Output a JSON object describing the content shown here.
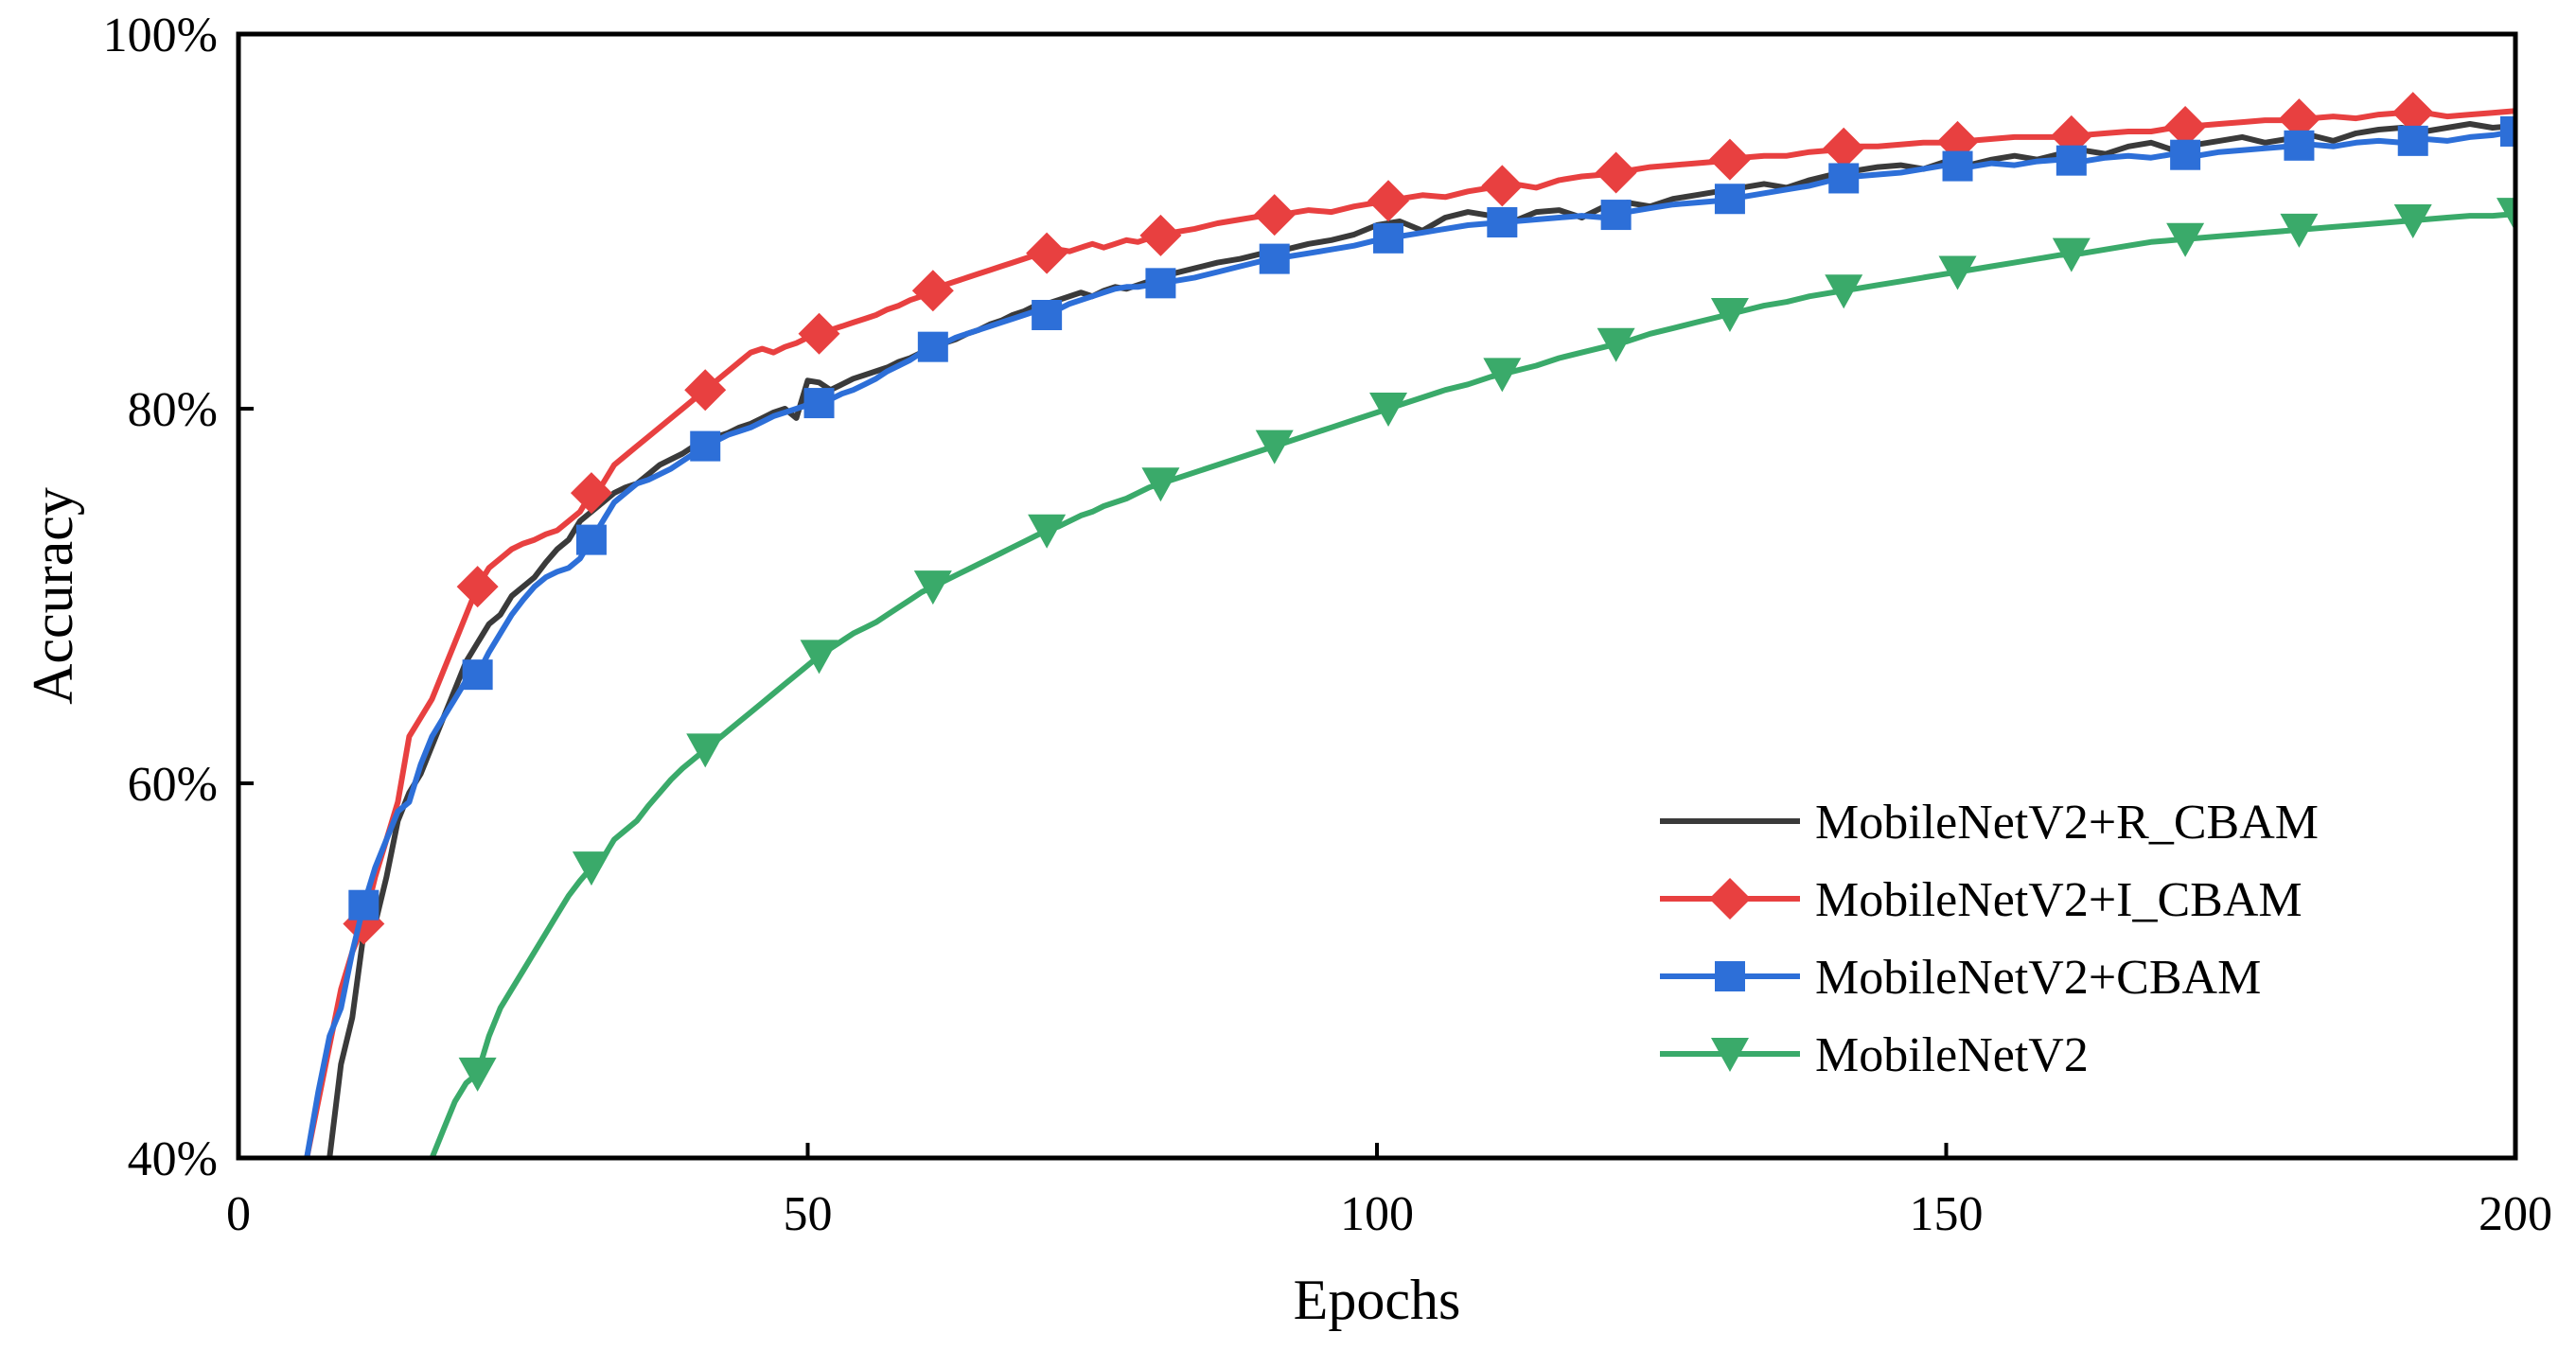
{
  "chart_data": {
    "type": "line",
    "title": "",
    "xlabel": "Epochs",
    "ylabel": "Accuracy",
    "xlim": [
      0,
      200
    ],
    "ylim": [
      40,
      100
    ],
    "x_ticks": [
      0,
      50,
      100,
      150,
      200
    ],
    "x_tick_labels": [
      "0",
      "50",
      "100",
      "150",
      "200"
    ],
    "y_ticks": [
      40,
      60,
      80,
      100
    ],
    "y_tick_labels": [
      "40%",
      "60%",
      "80%",
      "100%"
    ],
    "legend_position": "bottom-right",
    "series": [
      {
        "name": "MobileNetV2+R_CBAM",
        "color": "#3a3a3a",
        "marker": "none",
        "marker_x": [],
        "x": [
          8,
          9,
          10,
          11,
          12,
          13,
          14,
          15,
          16,
          17,
          18,
          19,
          20,
          21,
          22,
          23,
          24,
          25,
          26,
          27,
          28,
          29,
          30,
          31,
          32,
          33,
          34,
          35,
          36,
          37,
          38,
          39,
          40,
          41,
          42,
          43,
          44,
          45,
          46,
          47,
          48,
          49,
          50,
          51,
          52,
          53,
          54,
          55,
          56,
          57,
          58,
          59,
          60,
          61,
          62,
          63,
          64,
          65,
          66,
          67,
          68,
          69,
          70,
          71,
          72,
          73,
          74,
          75,
          76,
          77,
          78,
          79,
          80,
          82,
          84,
          86,
          88,
          90,
          92,
          94,
          96,
          98,
          100,
          102,
          104,
          106,
          108,
          110,
          112,
          114,
          116,
          118,
          120,
          122,
          124,
          126,
          128,
          130,
          132,
          134,
          136,
          138,
          140,
          142,
          144,
          146,
          148,
          150,
          152,
          154,
          156,
          158,
          160,
          162,
          164,
          166,
          168,
          170,
          172,
          174,
          176,
          178,
          180,
          182,
          184,
          186,
          188,
          190,
          192,
          194,
          196,
          198,
          200
        ],
        "values": [
          40.0,
          45.0,
          47.5,
          52.0,
          52.5,
          55.0,
          58.0,
          59.5,
          60.5,
          62.0,
          63.5,
          65.0,
          66.5,
          67.5,
          68.5,
          69.0,
          70.0,
          70.5,
          71.0,
          71.8,
          72.5,
          73.0,
          74.0,
          74.5,
          75.0,
          75.5,
          75.8,
          76.0,
          76.5,
          77.0,
          77.3,
          77.6,
          78.0,
          78.2,
          78.5,
          78.7,
          79.0,
          79.2,
          79.5,
          79.8,
          80.0,
          79.5,
          81.5,
          81.4,
          81.0,
          81.3,
          81.6,
          81.8,
          82.0,
          82.2,
          82.5,
          82.7,
          83.0,
          83.2,
          83.5,
          83.7,
          84.0,
          84.2,
          84.5,
          84.7,
          85.0,
          85.2,
          85.5,
          85.6,
          85.8,
          86.0,
          86.2,
          86.0,
          86.3,
          86.5,
          86.4,
          86.6,
          86.8,
          87.2,
          87.5,
          87.8,
          88.0,
          88.3,
          88.5,
          88.8,
          89.0,
          89.3,
          89.8,
          90.0,
          89.5,
          90.2,
          90.5,
          90.3,
          90.0,
          90.5,
          90.6,
          90.2,
          90.8,
          91.0,
          90.8,
          91.2,
          91.4,
          91.6,
          91.8,
          92.0,
          91.8,
          92.2,
          92.5,
          92.7,
          92.9,
          93.0,
          92.8,
          93.2,
          93.0,
          93.3,
          93.5,
          93.3,
          93.6,
          93.8,
          93.6,
          94.0,
          94.2,
          93.8,
          94.1,
          94.3,
          94.5,
          94.2,
          94.4,
          94.6,
          94.3,
          94.7,
          94.9,
          95.0,
          94.8,
          95.0,
          95.2,
          95.0,
          95.1
        ]
      },
      {
        "name": "MobileNetV2+I_CBAM",
        "color": "#e84040",
        "marker": "diamond",
        "marker_x": [
          11,
          21,
          31,
          41,
          51,
          61,
          71,
          81,
          91,
          101,
          111,
          121,
          131,
          141,
          151,
          161,
          171,
          181,
          191
        ],
        "x": [
          6,
          7,
          8,
          9,
          10,
          11,
          12,
          13,
          14,
          15,
          16,
          17,
          18,
          19,
          20,
          21,
          22,
          23,
          24,
          25,
          26,
          27,
          28,
          29,
          30,
          31,
          32,
          33,
          34,
          35,
          36,
          37,
          38,
          39,
          40,
          41,
          42,
          43,
          44,
          45,
          46,
          47,
          48,
          49,
          50,
          51,
          52,
          53,
          54,
          55,
          56,
          57,
          58,
          59,
          60,
          61,
          62,
          63,
          64,
          65,
          66,
          67,
          68,
          69,
          70,
          71,
          72,
          73,
          74,
          75,
          76,
          77,
          78,
          79,
          80,
          82,
          84,
          86,
          88,
          90,
          92,
          94,
          96,
          98,
          100,
          102,
          104,
          106,
          108,
          110,
          112,
          114,
          116,
          118,
          120,
          122,
          124,
          126,
          128,
          130,
          132,
          134,
          136,
          138,
          140,
          142,
          144,
          146,
          148,
          150,
          152,
          154,
          156,
          158,
          160,
          162,
          164,
          166,
          168,
          170,
          172,
          174,
          176,
          178,
          180,
          182,
          184,
          186,
          188,
          190,
          192,
          194,
          196,
          198,
          200
        ],
        "values": [
          40.0,
          43.0,
          46.0,
          49.0,
          51.0,
          52.5,
          55.0,
          57.0,
          59.0,
          62.5,
          63.5,
          64.5,
          66.0,
          67.5,
          69.0,
          70.5,
          71.5,
          72.0,
          72.5,
          72.8,
          73.0,
          73.3,
          73.5,
          74.0,
          74.5,
          75.5,
          76.0,
          77.0,
          77.5,
          78.0,
          78.5,
          79.0,
          79.5,
          80.0,
          80.5,
          81.0,
          81.5,
          82.0,
          82.5,
          83.0,
          83.2,
          83.0,
          83.3,
          83.5,
          83.8,
          84.0,
          84.2,
          84.4,
          84.6,
          84.8,
          85.0,
          85.3,
          85.5,
          85.8,
          86.0,
          86.3,
          86.6,
          86.8,
          87.0,
          87.2,
          87.4,
          87.6,
          87.8,
          88.0,
          88.2,
          88.3,
          88.5,
          88.4,
          88.6,
          88.8,
          88.6,
          88.8,
          89.0,
          88.9,
          89.1,
          89.4,
          89.6,
          89.9,
          90.1,
          90.3,
          90.4,
          90.6,
          90.5,
          90.8,
          91.0,
          91.2,
          91.4,
          91.3,
          91.6,
          91.8,
          92.0,
          91.8,
          92.2,
          92.4,
          92.5,
          92.7,
          92.9,
          93.0,
          93.1,
          93.2,
          93.4,
          93.5,
          93.5,
          93.7,
          93.8,
          94.0,
          94.0,
          94.1,
          94.2,
          94.2,
          94.3,
          94.4,
          94.5,
          94.5,
          94.5,
          94.6,
          94.7,
          94.8,
          94.8,
          95.0,
          95.1,
          95.2,
          95.3,
          95.4,
          95.4,
          95.5,
          95.6,
          95.5,
          95.7,
          95.8,
          95.8,
          95.6,
          95.7,
          95.8,
          95.9
        ]
      },
      {
        "name": "MobileNetV2+CBAM",
        "color": "#2d6fd8",
        "marker": "square",
        "marker_x": [
          11,
          21,
          31,
          41,
          51,
          61,
          71,
          81,
          91,
          101,
          111,
          121,
          131,
          141,
          151,
          161,
          171,
          181,
          191,
          200
        ],
        "x": [
          6,
          7,
          8,
          9,
          10,
          11,
          12,
          13,
          14,
          15,
          16,
          17,
          18,
          19,
          20,
          21,
          22,
          23,
          24,
          25,
          26,
          27,
          28,
          29,
          30,
          31,
          32,
          33,
          34,
          35,
          36,
          37,
          38,
          39,
          40,
          41,
          42,
          43,
          44,
          45,
          46,
          47,
          48,
          49,
          50,
          51,
          52,
          53,
          54,
          55,
          56,
          57,
          58,
          59,
          60,
          61,
          62,
          63,
          64,
          65,
          66,
          67,
          68,
          69,
          70,
          71,
          72,
          73,
          74,
          75,
          76,
          77,
          78,
          79,
          80,
          82,
          84,
          86,
          88,
          90,
          92,
          94,
          96,
          98,
          100,
          102,
          104,
          106,
          108,
          110,
          112,
          114,
          116,
          118,
          120,
          122,
          124,
          126,
          128,
          130,
          132,
          134,
          136,
          138,
          140,
          142,
          144,
          146,
          148,
          150,
          152,
          154,
          156,
          158,
          160,
          162,
          164,
          166,
          168,
          170,
          172,
          174,
          176,
          178,
          180,
          182,
          184,
          186,
          188,
          190,
          192,
          194,
          196,
          198,
          200
        ],
        "values": [
          40.0,
          43.5,
          46.5,
          48.0,
          51.0,
          53.5,
          55.5,
          57.0,
          58.5,
          59.0,
          61.0,
          62.5,
          63.5,
          64.5,
          65.5,
          65.8,
          67.0,
          68.0,
          69.0,
          69.8,
          70.5,
          71.0,
          71.3,
          71.5,
          72.0,
          73.0,
          74.0,
          75.0,
          75.5,
          76.0,
          76.2,
          76.5,
          76.8,
          77.2,
          77.6,
          78.0,
          78.3,
          78.6,
          78.8,
          79.0,
          79.3,
          79.6,
          79.8,
          80.0,
          80.2,
          80.3,
          80.5,
          80.8,
          81.0,
          81.3,
          81.6,
          82.0,
          82.3,
          82.6,
          83.0,
          83.3,
          83.5,
          83.8,
          84.0,
          84.2,
          84.4,
          84.6,
          84.8,
          85.0,
          85.2,
          85.0,
          85.3,
          85.6,
          85.8,
          86.0,
          86.2,
          86.4,
          86.5,
          86.5,
          86.6,
          86.8,
          87.0,
          87.3,
          87.6,
          87.9,
          88.1,
          88.3,
          88.5,
          88.7,
          89.0,
          89.2,
          89.4,
          89.6,
          89.8,
          89.9,
          90.0,
          90.1,
          90.2,
          90.3,
          90.2,
          90.5,
          90.7,
          90.9,
          91.0,
          91.1,
          91.3,
          91.5,
          91.7,
          91.9,
          92.2,
          92.4,
          92.5,
          92.6,
          92.8,
          93.0,
          92.9,
          93.1,
          93.0,
          93.2,
          93.3,
          93.2,
          93.4,
          93.5,
          93.4,
          93.6,
          93.5,
          93.7,
          93.8,
          93.9,
          94.0,
          94.1,
          94.0,
          94.2,
          94.3,
          94.2,
          94.4,
          94.3,
          94.5,
          94.6,
          94.8
        ]
      },
      {
        "name": "MobileNetV2",
        "color": "#3aaa6a",
        "marker": "triangle-down",
        "marker_x": [
          21,
          31,
          41,
          51,
          61,
          71,
          81,
          91,
          101,
          111,
          121,
          131,
          141,
          151,
          161,
          171,
          181,
          191,
          200
        ],
        "x": [
          17,
          18,
          19,
          20,
          21,
          22,
          23,
          24,
          25,
          26,
          27,
          28,
          29,
          30,
          31,
          32,
          33,
          34,
          35,
          36,
          37,
          38,
          39,
          40,
          41,
          42,
          43,
          44,
          45,
          46,
          47,
          48,
          49,
          50,
          51,
          52,
          53,
          54,
          55,
          56,
          57,
          58,
          59,
          60,
          61,
          62,
          63,
          64,
          65,
          66,
          67,
          68,
          69,
          70,
          71,
          72,
          73,
          74,
          75,
          76,
          77,
          78,
          79,
          80,
          82,
          84,
          86,
          88,
          90,
          92,
          94,
          96,
          98,
          100,
          102,
          104,
          106,
          108,
          110,
          112,
          114,
          116,
          118,
          120,
          122,
          124,
          126,
          128,
          130,
          132,
          134,
          136,
          138,
          140,
          142,
          144,
          146,
          148,
          150,
          152,
          154,
          156,
          158,
          160,
          162,
          164,
          166,
          168,
          170,
          172,
          174,
          176,
          178,
          180,
          182,
          184,
          186,
          188,
          190,
          192,
          194,
          196,
          198,
          200
        ],
        "values": [
          40.0,
          41.5,
          43.0,
          44.0,
          44.5,
          46.5,
          48.0,
          49.0,
          50.0,
          51.0,
          52.0,
          53.0,
          54.0,
          54.8,
          55.5,
          56.0,
          57.0,
          57.5,
          58.0,
          58.8,
          59.5,
          60.2,
          60.8,
          61.3,
          61.8,
          62.3,
          62.8,
          63.3,
          63.8,
          64.3,
          64.8,
          65.3,
          65.8,
          66.3,
          66.8,
          67.2,
          67.6,
          68.0,
          68.3,
          68.6,
          69.0,
          69.4,
          69.8,
          70.2,
          70.5,
          70.8,
          71.1,
          71.4,
          71.7,
          72.0,
          72.3,
          72.6,
          72.9,
          73.2,
          73.5,
          73.7,
          74.0,
          74.3,
          74.5,
          74.8,
          75.0,
          75.2,
          75.5,
          75.8,
          76.2,
          76.6,
          77.0,
          77.4,
          77.8,
          78.2,
          78.6,
          79.0,
          79.4,
          79.8,
          80.2,
          80.6,
          81.0,
          81.3,
          81.7,
          82.0,
          82.3,
          82.7,
          83.0,
          83.3,
          83.6,
          84.0,
          84.3,
          84.6,
          84.9,
          85.2,
          85.5,
          85.7,
          86.0,
          86.2,
          86.4,
          86.6,
          86.8,
          87.0,
          87.2,
          87.4,
          87.6,
          87.8,
          88.0,
          88.2,
          88.3,
          88.5,
          88.7,
          88.9,
          89.0,
          89.1,
          89.2,
          89.3,
          89.4,
          89.5,
          89.6,
          89.7,
          89.8,
          89.9,
          90.0,
          90.1,
          90.2,
          90.3,
          90.3,
          90.4
        ]
      }
    ]
  }
}
